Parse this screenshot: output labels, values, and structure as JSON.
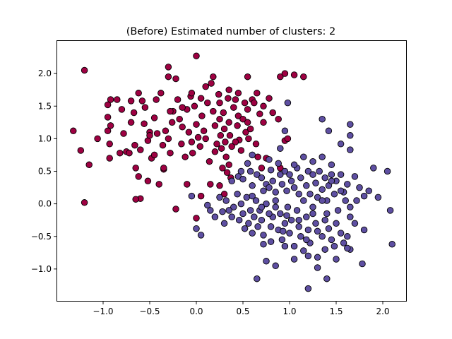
{
  "chart_data": {
    "type": "scatter",
    "title": "(Before) Estimated number of clusters: 2",
    "xlabel": "",
    "ylabel": "",
    "xlim": [
      -1.5,
      2.25
    ],
    "ylim": [
      -1.5,
      2.5
    ],
    "x_ticks": [
      -1.0,
      -0.5,
      0.0,
      0.5,
      1.0,
      1.5,
      2.0
    ],
    "x_tick_labels": [
      "−1.0",
      "−0.5",
      "0.0",
      "0.5",
      "1.0",
      "1.5",
      "2.0"
    ],
    "y_ticks": [
      -1.0,
      -0.5,
      0.0,
      0.5,
      1.0,
      1.5,
      2.0
    ],
    "y_tick_labels": [
      "−1.0",
      "−0.5",
      "0.0",
      "0.5",
      "1.0",
      "1.5",
      "2.0"
    ],
    "grid": false,
    "legend": "none",
    "series": [
      {
        "color": "#9e0142",
        "edgecolor": "#000000",
        "points": [
          [
            -1.2,
            2.05
          ],
          [
            -1.32,
            1.12
          ],
          [
            -1.24,
            0.82
          ],
          [
            -1.15,
            0.6
          ],
          [
            -1.2,
            0.02
          ],
          [
            -1.06,
            1.0
          ],
          [
            -0.95,
            1.52
          ],
          [
            -0.92,
            1.6
          ],
          [
            -0.95,
            1.33
          ],
          [
            -0.92,
            1.2
          ],
          [
            -0.95,
            1.12
          ],
          [
            -0.93,
            0.92
          ],
          [
            -0.93,
            0.7
          ],
          [
            -0.85,
            1.6
          ],
          [
            -0.8,
            1.45
          ],
          [
            -0.78,
            1.08
          ],
          [
            -0.75,
            0.8
          ],
          [
            -0.72,
            0.78
          ],
          [
            -0.7,
            1.58
          ],
          [
            -0.67,
            1.4
          ],
          [
            -0.66,
            0.9
          ],
          [
            -0.65,
            0.55
          ],
          [
            -0.62,
            0.42
          ],
          [
            -0.62,
            1.7
          ],
          [
            -0.6,
            0.83
          ],
          [
            -0.58,
            1.58
          ],
          [
            -0.56,
            1.23
          ],
          [
            -0.55,
            1.48
          ],
          [
            -0.52,
            0.97
          ],
          [
            -0.5,
            1.1
          ],
          [
            -0.48,
            0.7
          ],
          [
            -0.45,
            1.32
          ],
          [
            -0.43,
            1.6
          ],
          [
            -0.42,
            1.08
          ],
          [
            -0.4,
            0.3
          ],
          [
            -0.38,
            1.7
          ],
          [
            -0.36,
            0.9
          ],
          [
            -0.35,
            0.53
          ],
          [
            -0.33,
            1.12
          ],
          [
            -0.3,
            1.0
          ],
          [
            -0.28,
            0.78
          ],
          [
            -0.26,
            1.25
          ],
          [
            -0.25,
            1.42
          ],
          [
            -0.22,
            1.92
          ],
          [
            -0.2,
            1.6
          ],
          [
            -0.18,
            1.3
          ],
          [
            -0.16,
            0.92
          ],
          [
            -0.15,
            1.18
          ],
          [
            -0.12,
            0.72
          ],
          [
            -0.1,
            1.45
          ],
          [
            -0.08,
            1.1
          ],
          [
            -0.06,
            1.65
          ],
          [
            -0.05,
            0.95
          ],
          [
            -0.04,
            0.78
          ],
          [
            -0.02,
            1.5
          ],
          [
            0.0,
            1.22
          ],
          [
            0.02,
            1.02
          ],
          [
            0.04,
            0.88
          ],
          [
            0.06,
            1.35
          ],
          [
            0.08,
            1.12
          ],
          [
            0.1,
            1.0
          ],
          [
            0.12,
            1.55
          ],
          [
            0.14,
            0.65
          ],
          [
            0.15,
            0.3
          ],
          [
            0.16,
            1.85
          ],
          [
            0.18,
            1.42
          ],
          [
            0.2,
            1.2
          ],
          [
            0.22,
            0.92
          ],
          [
            0.24,
            1.68
          ],
          [
            0.25,
            1.55
          ],
          [
            0.26,
            1.05
          ],
          [
            0.27,
            0.85
          ],
          [
            0.28,
            0.55
          ],
          [
            0.29,
            1.4
          ],
          [
            0.3,
            1.15
          ],
          [
            0.31,
            0.95
          ],
          [
            0.32,
            0.72
          ],
          [
            0.33,
            0.48
          ],
          [
            0.34,
            1.62
          ],
          [
            0.35,
            1.25
          ],
          [
            0.36,
            1.05
          ],
          [
            0.37,
            0.4
          ],
          [
            0.38,
            0.88
          ],
          [
            0.4,
            1.48
          ],
          [
            0.42,
            1.6
          ],
          [
            0.44,
            1.2
          ],
          [
            0.45,
            1.35
          ],
          [
            0.46,
            0.98
          ],
          [
            0.48,
            0.82
          ],
          [
            0.5,
            1.3
          ],
          [
            0.52,
            1.55
          ],
          [
            0.53,
            1.1
          ],
          [
            0.55,
            1.45
          ],
          [
            0.56,
            1.0
          ],
          [
            0.58,
            1.15
          ],
          [
            0.6,
            1.6
          ],
          [
            0.62,
            1.55
          ],
          [
            0.64,
            0.92
          ],
          [
            0.66,
            0.72
          ],
          [
            0.68,
            1.38
          ],
          [
            0.7,
            0.55
          ],
          [
            0.72,
            1.5
          ],
          [
            0.75,
            0.7
          ],
          [
            0.78,
            1.62
          ],
          [
            0.82,
            1.4
          ],
          [
            0.88,
            1.3
          ],
          [
            0.9,
            0.55
          ],
          [
            0.95,
            0.97
          ],
          [
            0.98,
            1.0
          ],
          [
            0.9,
            1.95
          ],
          [
            0.95,
            2.0
          ],
          [
            1.05,
            1.98
          ],
          [
            1.15,
            1.95
          ],
          [
            0.55,
            1.95
          ],
          [
            0.0,
            2.27
          ],
          [
            -0.3,
            2.1
          ],
          [
            -0.3,
            1.95
          ],
          [
            0.1,
            1.8
          ],
          [
            -0.28,
            1.42
          ],
          [
            -0.7,
            1.25
          ],
          [
            -0.82,
            0.78
          ],
          [
            -0.45,
            0.75
          ],
          [
            0.25,
            0.28
          ],
          [
            -0.1,
            0.3
          ],
          [
            0.0,
            -0.22
          ],
          [
            0.3,
            0.15
          ],
          [
            -0.6,
            0.08
          ],
          [
            -0.65,
            0.07
          ],
          [
            -0.22,
            -0.08
          ],
          [
            -0.35,
            0.55
          ],
          [
            0.05,
            0.12
          ],
          [
            0.2,
            0.8
          ],
          [
            0.35,
            0.6
          ],
          [
            0.45,
            1.7
          ],
          [
            0.25,
            1.3
          ],
          [
            -0.5,
            1.05
          ],
          [
            -0.15,
            1.48
          ],
          [
            0.05,
            1.62
          ],
          [
            0.18,
            1.95
          ],
          [
            0.35,
            1.75
          ],
          [
            0.65,
            1.7
          ],
          [
            0.72,
            1.25
          ],
          [
            0.55,
            1.25
          ],
          [
            -0.05,
            1.7
          ],
          [
            0.42,
            0.95
          ],
          [
            -0.52,
            0.35
          ]
        ]
      },
      {
        "color": "#5e4fa2",
        "edgecolor": "#000000",
        "points": [
          [
            0.98,
            1.55
          ],
          [
            1.35,
            1.3
          ],
          [
            1.42,
            1.12
          ],
          [
            1.55,
            0.92
          ],
          [
            1.65,
            1.22
          ],
          [
            1.65,
            1.05
          ],
          [
            1.65,
            0.83
          ],
          [
            0.95,
            1.12
          ],
          [
            0.9,
            0.85
          ],
          [
            0.78,
            0.68
          ],
          [
            0.6,
            0.75
          ],
          [
            0.55,
            0.62
          ],
          [
            0.58,
            0.5
          ],
          [
            0.48,
            0.5
          ],
          [
            0.45,
            0.42
          ],
          [
            0.5,
            0.38
          ],
          [
            0.38,
            0.35
          ],
          [
            0.6,
            0.28
          ],
          [
            0.65,
            0.45
          ],
          [
            0.7,
            0.4
          ],
          [
            0.72,
            0.2
          ],
          [
            0.75,
            0.3
          ],
          [
            0.78,
            0.25
          ],
          [
            0.8,
            0.52
          ],
          [
            0.82,
            0.35
          ],
          [
            0.85,
            0.18
          ],
          [
            0.88,
            0.62
          ],
          [
            0.9,
            0.45
          ],
          [
            0.92,
            0.3
          ],
          [
            0.95,
            0.5
          ],
          [
            0.97,
            0.2
          ],
          [
            1.0,
            0.45
          ],
          [
            1.02,
            0.35
          ],
          [
            1.05,
            0.25
          ],
          [
            1.08,
            0.55
          ],
          [
            1.1,
            0.15
          ],
          [
            1.12,
            0.4
          ],
          [
            1.15,
            0.05
          ],
          [
            1.18,
            0.28
          ],
          [
            1.2,
            0.5
          ],
          [
            1.22,
            0.15
          ],
          [
            1.25,
            0.45
          ],
          [
            1.28,
            0.32
          ],
          [
            1.3,
            0.1
          ],
          [
            1.32,
            0.5
          ],
          [
            1.35,
            0.22
          ],
          [
            1.38,
            0.4
          ],
          [
            1.4,
            0.05
          ],
          [
            1.42,
            0.28
          ],
          [
            1.45,
            0.45
          ],
          [
            1.48,
            0.15
          ],
          [
            1.5,
            0.35
          ],
          [
            1.55,
            0.45
          ],
          [
            1.58,
            0.18
          ],
          [
            1.6,
            0.05
          ],
          [
            1.62,
            0.3
          ],
          [
            1.65,
            -0.05
          ],
          [
            1.7,
            0.42
          ],
          [
            1.75,
            0.25
          ],
          [
            1.8,
            0.12
          ],
          [
            1.85,
            0.2
          ],
          [
            1.9,
            0.55
          ],
          [
            1.95,
            0.1
          ],
          [
            2.05,
            0.5
          ],
          [
            2.08,
            -0.1
          ],
          [
            2.1,
            -0.62
          ],
          [
            1.8,
            -0.4
          ],
          [
            1.78,
            -0.92
          ],
          [
            1.65,
            -0.7
          ],
          [
            1.62,
            -0.5
          ],
          [
            1.58,
            -0.6
          ],
          [
            1.55,
            -0.45
          ],
          [
            1.5,
            -0.3
          ],
          [
            1.48,
            -0.65
          ],
          [
            1.45,
            -0.55
          ],
          [
            1.42,
            -0.38
          ],
          [
            1.4,
            -0.15
          ],
          [
            1.38,
            -0.7
          ],
          [
            1.35,
            -0.5
          ],
          [
            1.3,
            -0.82
          ],
          [
            1.28,
            -0.3
          ],
          [
            1.25,
            -0.05
          ],
          [
            1.22,
            -0.6
          ],
          [
            1.2,
            -0.4
          ],
          [
            1.18,
            -0.2
          ],
          [
            1.15,
            -0.72
          ],
          [
            1.12,
            -0.5
          ],
          [
            1.1,
            -0.35
          ],
          [
            1.08,
            -0.1
          ],
          [
            1.05,
            -0.65
          ],
          [
            1.02,
            -0.25
          ],
          [
            1.0,
            -0.45
          ],
          [
            0.98,
            -0.05
          ],
          [
            0.95,
            -0.3
          ],
          [
            0.92,
            -0.55
          ],
          [
            0.9,
            -0.15
          ],
          [
            0.88,
            -0.4
          ],
          [
            0.85,
            -0.05
          ],
          [
            0.82,
            -0.2
          ],
          [
            0.8,
            -0.35
          ],
          [
            0.78,
            -0.15
          ],
          [
            0.75,
            0.0
          ],
          [
            0.72,
            -0.48
          ],
          [
            0.7,
            -0.25
          ],
          [
            0.68,
            -0.1
          ],
          [
            0.66,
            -0.35
          ],
          [
            0.64,
            0.05
          ],
          [
            0.62,
            -0.2
          ],
          [
            0.6,
            -0.45
          ],
          [
            0.58,
            -0.1
          ],
          [
            0.56,
            -0.3
          ],
          [
            0.54,
            0.1
          ],
          [
            0.52,
            -0.38
          ],
          [
            0.5,
            -0.15
          ],
          [
            0.48,
            0.0
          ],
          [
            0.46,
            -0.25
          ],
          [
            0.44,
            0.15
          ],
          [
            0.4,
            -0.05
          ],
          [
            0.38,
            -0.2
          ],
          [
            0.35,
            -0.1
          ],
          [
            0.32,
            0.05
          ],
          [
            0.3,
            -0.3
          ],
          [
            0.28,
            -0.12
          ],
          [
            0.25,
            0.1
          ],
          [
            0.2,
            -0.2
          ],
          [
            0.15,
            -0.1
          ],
          [
            0.12,
            -0.02
          ],
          [
            0.05,
            -0.48
          ],
          [
            0.0,
            -0.38
          ],
          [
            -0.05,
            0.12
          ],
          [
            0.8,
            -0.58
          ],
          [
            0.75,
            -0.88
          ],
          [
            0.85,
            -0.95
          ],
          [
            0.95,
            -0.65
          ],
          [
            1.05,
            -0.85
          ],
          [
            1.2,
            -0.8
          ],
          [
            1.3,
            -0.98
          ],
          [
            1.4,
            -1.15
          ],
          [
            1.2,
            -1.3
          ],
          [
            0.65,
            -1.15
          ],
          [
            0.72,
            -0.62
          ],
          [
            1.5,
            -0.85
          ],
          [
            1.62,
            -0.68
          ],
          [
            1.7,
            -0.3
          ],
          [
            1.45,
            0.6
          ],
          [
            1.55,
            0.2
          ],
          [
            1.72,
            0.05
          ],
          [
            1.25,
            0.65
          ],
          [
            1.15,
            0.72
          ],
          [
            1.05,
            0.6
          ],
          [
            1.35,
            0.05
          ],
          [
            0.97,
            -0.18
          ],
          [
            1.1,
            -0.25
          ],
          [
            1.25,
            -0.15
          ],
          [
            1.38,
            -0.25
          ],
          [
            1.52,
            -0.1
          ],
          [
            1.65,
            -0.2
          ],
          [
            0.6,
            0.12
          ],
          [
            0.85,
            0.05
          ],
          [
            1.35,
            0.72
          ],
          [
            1.45,
            0.35
          ],
          [
            1.3,
            -0.42
          ],
          [
            1.18,
            -0.55
          ],
          [
            0.93,
            -0.42
          ],
          [
            0.7,
            -0.05
          ]
        ]
      }
    ]
  }
}
